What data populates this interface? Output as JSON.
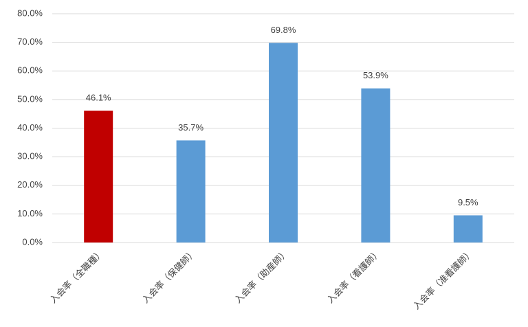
{
  "chart_data": {
    "type": "bar",
    "categories": [
      "入会率（全職種）",
      "入会率（保健師）",
      "入会率（助産師）",
      "入会率（看護師）",
      "入会率（准看護師）"
    ],
    "values": [
      46.1,
      35.7,
      69.8,
      53.9,
      9.5
    ],
    "value_labels": [
      "46.1%",
      "35.7%",
      "69.8%",
      "53.9%",
      "9.5%"
    ],
    "colors": [
      "#c00000",
      "#5b9bd5",
      "#5b9bd5",
      "#5b9bd5",
      "#5b9bd5"
    ],
    "ylim": [
      0,
      80
    ],
    "yticks": [
      {
        "value": 0,
        "label": "0.0%"
      },
      {
        "value": 10,
        "label": "10.0%"
      },
      {
        "value": 20,
        "label": "20.0%"
      },
      {
        "value": 30,
        "label": "30.0%"
      },
      {
        "value": 40,
        "label": "40.0%"
      },
      {
        "value": 50,
        "label": "50.0%"
      },
      {
        "value": 60,
        "label": "60.0%"
      },
      {
        "value": 70,
        "label": "70.0%"
      },
      {
        "value": 80,
        "label": "80.0%"
      }
    ],
    "grid": true
  }
}
